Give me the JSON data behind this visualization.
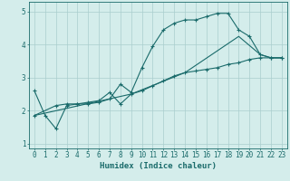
{
  "xlabel": "Humidex (Indice chaleur)",
  "ylabel": "",
  "bg_color": "#d4edeb",
  "grid_color": "#aacece",
  "line_color": "#1a6b6b",
  "xlim": [
    -0.5,
    23.5
  ],
  "ylim": [
    0.85,
    5.3
  ],
  "xticks": [
    0,
    1,
    2,
    3,
    4,
    5,
    6,
    7,
    8,
    9,
    10,
    11,
    12,
    13,
    14,
    15,
    16,
    17,
    18,
    19,
    20,
    21,
    22,
    23
  ],
  "yticks": [
    1,
    2,
    3,
    4,
    5
  ],
  "line1_x": [
    0,
    1,
    2,
    3,
    4,
    5,
    6,
    7,
    8,
    9,
    10,
    11,
    12,
    13,
    14,
    15,
    16,
    17,
    18,
    19,
    20,
    21,
    22,
    23
  ],
  "line1_y": [
    2.6,
    1.85,
    1.45,
    2.15,
    2.2,
    2.2,
    2.25,
    2.35,
    2.8,
    2.55,
    3.3,
    3.95,
    4.45,
    4.65,
    4.75,
    4.75,
    4.85,
    4.95,
    4.95,
    4.45,
    4.25,
    3.7,
    3.6,
    3.6
  ],
  "line2_x": [
    0,
    2,
    3,
    4,
    5,
    6,
    7,
    8,
    9,
    10,
    11,
    12,
    13,
    14,
    15,
    16,
    17,
    18,
    19,
    20,
    21,
    22,
    23
  ],
  "line2_y": [
    1.85,
    2.15,
    2.2,
    2.2,
    2.25,
    2.3,
    2.55,
    2.2,
    2.5,
    2.6,
    2.75,
    2.9,
    3.05,
    3.15,
    3.2,
    3.25,
    3.3,
    3.4,
    3.45,
    3.55,
    3.6,
    3.6,
    3.6
  ],
  "line3_x": [
    0,
    9,
    14,
    19,
    21,
    22,
    23
  ],
  "line3_y": [
    1.85,
    2.5,
    3.15,
    4.25,
    3.7,
    3.6,
    3.6
  ]
}
